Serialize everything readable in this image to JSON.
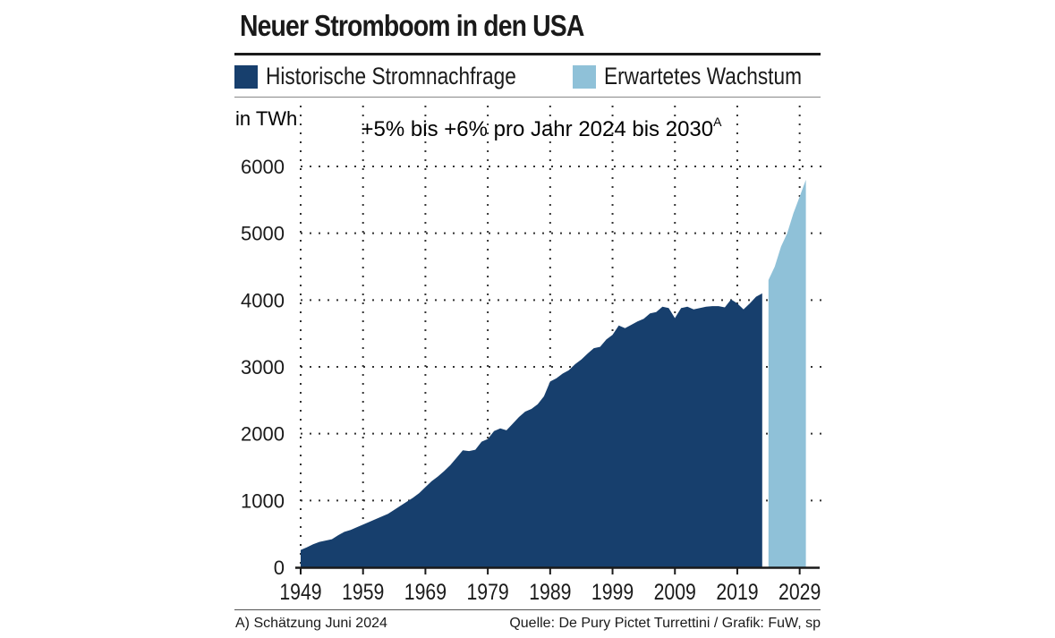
{
  "header": {
    "title": "Neuer Stromboom in den USA"
  },
  "legend": [
    {
      "label": "Historische Stromnachfrage",
      "color": "#173f6d"
    },
    {
      "label": "Erwartetes Wachstum",
      "color": "#8fc1d8"
    }
  ],
  "footer": {
    "footnote": "A) Schätzung Juni 2024",
    "source": "Quelle: De Pury Pictet Turrettini / Grafik: FuW, sp"
  },
  "chart_data": {
    "type": "area",
    "title": "Neuer Stromboom in den USA",
    "ylabel": "in TWh",
    "annotation": "+5% bis +6% pro Jahr 2024 bis 2030",
    "annotation_superscript": "A",
    "xlim": [
      1949,
      2030
    ],
    "ylim": [
      0,
      6000
    ],
    "x_ticks": [
      1949,
      1959,
      1969,
      1979,
      1989,
      1999,
      2009,
      2019,
      2029
    ],
    "y_ticks": [
      0,
      1000,
      2000,
      3000,
      4000,
      5000,
      6000
    ],
    "grid": true,
    "series": [
      {
        "name": "Historische Stromnachfrage",
        "color": "#173f6d",
        "x": [
          1949,
          1950,
          1951,
          1952,
          1953,
          1954,
          1955,
          1956,
          1957,
          1958,
          1959,
          1960,
          1961,
          1962,
          1963,
          1964,
          1965,
          1966,
          1967,
          1968,
          1969,
          1970,
          1971,
          1972,
          1973,
          1974,
          1975,
          1976,
          1977,
          1978,
          1979,
          1980,
          1981,
          1982,
          1983,
          1984,
          1985,
          1986,
          1987,
          1988,
          1989,
          1990,
          1991,
          1992,
          1993,
          1994,
          1995,
          1996,
          1997,
          1998,
          1999,
          2000,
          2001,
          2002,
          2003,
          2004,
          2005,
          2006,
          2007,
          2008,
          2009,
          2010,
          2011,
          2012,
          2013,
          2014,
          2015,
          2016,
          2017,
          2018,
          2019,
          2020,
          2021,
          2022,
          2023
        ],
        "values": [
          260,
          300,
          345,
          380,
          400,
          420,
          480,
          530,
          560,
          600,
          640,
          680,
          720,
          760,
          800,
          860,
          920,
          980,
          1040,
          1110,
          1200,
          1290,
          1360,
          1440,
          1530,
          1640,
          1750,
          1740,
          1760,
          1880,
          1920,
          2040,
          2080,
          2050,
          2150,
          2250,
          2330,
          2370,
          2440,
          2560,
          2780,
          2830,
          2900,
          2950,
          3040,
          3110,
          3200,
          3280,
          3300,
          3410,
          3480,
          3620,
          3580,
          3630,
          3680,
          3720,
          3800,
          3820,
          3900,
          3880,
          3730,
          3880,
          3900,
          3860,
          3880,
          3900,
          3910,
          3910,
          3890,
          4010,
          3950,
          3860,
          3950,
          4050,
          4100
        ]
      },
      {
        "name": "Erwartetes Wachstum",
        "color": "#8fc1d8",
        "x": [
          2024,
          2025,
          2026,
          2027,
          2028,
          2029,
          2030
        ],
        "values": [
          4300,
          4500,
          4800,
          5000,
          5300,
          5550,
          5800
        ]
      }
    ]
  }
}
